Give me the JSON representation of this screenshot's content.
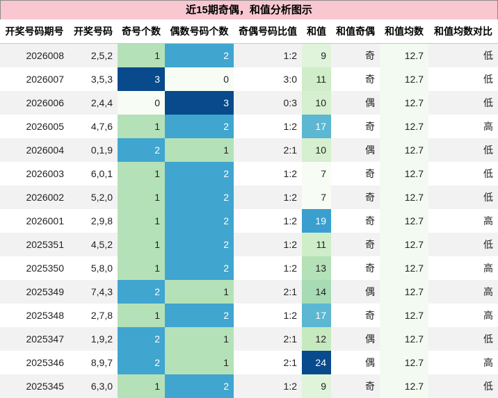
{
  "title": "近15期奇偶，和值分析图示",
  "headers": [
    "开奖号码期号",
    "开奖号码",
    "奇号个数",
    "偶数号码个数",
    "奇偶号码比值",
    "和值",
    "和值奇偶",
    "和值均数",
    "和值均数对比"
  ],
  "colors": {
    "scale_0": "#f7fcf5",
    "scale_1": "#b5e1b8",
    "scale_2": "#40a5cf",
    "scale_3": "#084a8c",
    "sum_7": "#f7fcf5",
    "sum_9": "#e0f3db",
    "sum_10": "#d6efcf",
    "sum_11": "#d0edca",
    "sum_12": "#c7e9c0",
    "sum_13": "#b5e1b8",
    "sum_14": "#a6dbb5",
    "sum_17": "#5cb7d2",
    "sum_19": "#3a9fcf",
    "sum_24": "#084a8c"
  },
  "rows": [
    {
      "period": "2026008",
      "numbers": "2,5,2",
      "odd": 1,
      "even": 2,
      "ratio": "1:2",
      "sum": 9,
      "sum_parity": "奇",
      "avg": "12.7",
      "compare": "低"
    },
    {
      "period": "2026007",
      "numbers": "3,5,3",
      "odd": 3,
      "even": 0,
      "ratio": "3:0",
      "sum": 11,
      "sum_parity": "奇",
      "avg": "12.7",
      "compare": "低"
    },
    {
      "period": "2026006",
      "numbers": "2,4,4",
      "odd": 0,
      "even": 3,
      "ratio": "0:3",
      "sum": 10,
      "sum_parity": "偶",
      "avg": "12.7",
      "compare": "低"
    },
    {
      "period": "2026005",
      "numbers": "4,7,6",
      "odd": 1,
      "even": 2,
      "ratio": "1:2",
      "sum": 17,
      "sum_parity": "奇",
      "avg": "12.7",
      "compare": "高"
    },
    {
      "period": "2026004",
      "numbers": "0,1,9",
      "odd": 2,
      "even": 1,
      "ratio": "2:1",
      "sum": 10,
      "sum_parity": "偶",
      "avg": "12.7",
      "compare": "低"
    },
    {
      "period": "2026003",
      "numbers": "6,0,1",
      "odd": 1,
      "even": 2,
      "ratio": "1:2",
      "sum": 7,
      "sum_parity": "奇",
      "avg": "12.7",
      "compare": "低"
    },
    {
      "period": "2026002",
      "numbers": "5,2,0",
      "odd": 1,
      "even": 2,
      "ratio": "1:2",
      "sum": 7,
      "sum_parity": "奇",
      "avg": "12.7",
      "compare": "低"
    },
    {
      "period": "2026001",
      "numbers": "2,9,8",
      "odd": 1,
      "even": 2,
      "ratio": "1:2",
      "sum": 19,
      "sum_parity": "奇",
      "avg": "12.7",
      "compare": "高"
    },
    {
      "period": "2025351",
      "numbers": "4,5,2",
      "odd": 1,
      "even": 2,
      "ratio": "1:2",
      "sum": 11,
      "sum_parity": "奇",
      "avg": "12.7",
      "compare": "低"
    },
    {
      "period": "2025350",
      "numbers": "5,8,0",
      "odd": 1,
      "even": 2,
      "ratio": "1:2",
      "sum": 13,
      "sum_parity": "奇",
      "avg": "12.7",
      "compare": "高"
    },
    {
      "period": "2025349",
      "numbers": "7,4,3",
      "odd": 2,
      "even": 1,
      "ratio": "2:1",
      "sum": 14,
      "sum_parity": "偶",
      "avg": "12.7",
      "compare": "高"
    },
    {
      "period": "2025348",
      "numbers": "2,7,8",
      "odd": 1,
      "even": 2,
      "ratio": "1:2",
      "sum": 17,
      "sum_parity": "奇",
      "avg": "12.7",
      "compare": "高"
    },
    {
      "period": "2025347",
      "numbers": "1,9,2",
      "odd": 2,
      "even": 1,
      "ratio": "2:1",
      "sum": 12,
      "sum_parity": "偶",
      "avg": "12.7",
      "compare": "低"
    },
    {
      "period": "2025346",
      "numbers": "8,9,7",
      "odd": 2,
      "even": 1,
      "ratio": "2:1",
      "sum": 24,
      "sum_parity": "偶",
      "avg": "12.7",
      "compare": "高"
    },
    {
      "period": "2025345",
      "numbers": "6,3,0",
      "odd": 1,
      "even": 2,
      "ratio": "1:2",
      "sum": 9,
      "sum_parity": "奇",
      "avg": "12.7",
      "compare": "低"
    }
  ]
}
